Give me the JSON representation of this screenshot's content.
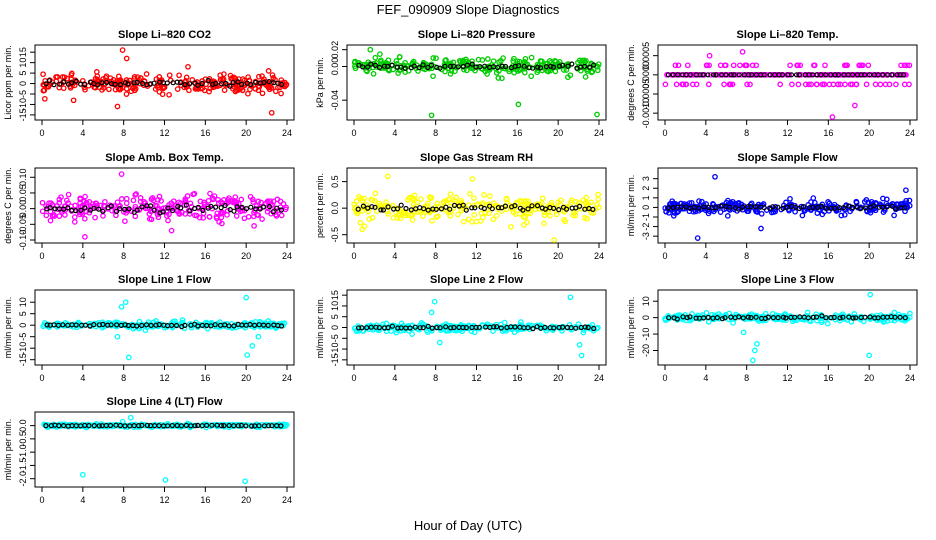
{
  "figure": {
    "title": "FEF_090909  Slope Diagnostics",
    "xlabel": "Hour of Day (UTC)"
  },
  "chart_data": [
    {
      "type": "scatter",
      "title": "Slope Li–820 CO2",
      "ylabel": "Licor ppm per min.",
      "color": "#ff0000",
      "xlim": [
        0,
        24
      ],
      "ylim": [
        -16,
        17
      ],
      "yticks": [
        -15,
        -10,
        -5,
        0,
        5,
        10,
        15
      ],
      "ytick_labels": [
        "-15",
        "-10",
        "-5",
        "0",
        "5",
        "10",
        "15"
      ],
      "xticks": [
        0,
        4,
        8,
        12,
        16,
        20,
        24
      ],
      "series": [
        {
          "mean": 0,
          "spread": 3.5,
          "outliers": [
            [
              7.9,
              16
            ],
            [
              8.3,
              12
            ],
            [
              3.1,
              -8
            ],
            [
              7.4,
              -11
            ],
            [
              22.5,
              -14
            ],
            [
              14.3,
              8
            ]
          ]
        }
      ]
    },
    {
      "type": "scatter",
      "title": "Slope Li–820 Pressure",
      "ylabel": "kPa per min.",
      "color": "#00cc00",
      "xlim": [
        0,
        24
      ],
      "ylim": [
        -0.06,
        0.022
      ],
      "yticks": [
        -0.04,
        0,
        0.02
      ],
      "ytick_labels": [
        "-0.04",
        "0.00",
        "0.02"
      ],
      "xticks": [
        0,
        4,
        8,
        12,
        16,
        20,
        24
      ],
      "series": [
        {
          "mean": 0,
          "spread": 0.008,
          "outliers": [
            [
              1.6,
              0.02
            ],
            [
              7.6,
              -0.058
            ],
            [
              23.8,
              -0.057
            ],
            [
              16.1,
              -0.045
            ]
          ]
        }
      ]
    },
    {
      "type": "scatter",
      "title": "Slope Li–820 Temp.",
      "ylabel": "degrees C per min.",
      "color": "#ff00ff",
      "xlim": [
        0,
        24
      ],
      "ylim": [
        -0.0011,
        0.0007
      ],
      "yticks": [
        -0.001,
        -0.0005,
        0,
        0.0005
      ],
      "ytick_labels": [
        "-0.0010",
        "-0.0005",
        "0.0000",
        "0.0005"
      ],
      "xticks": [
        0,
        4,
        8,
        12,
        16,
        20,
        24
      ],
      "series": [
        {
          "mean": 0,
          "spread": 0.0002,
          "quantum": 0.00025,
          "outliers": [
            [
              16.4,
              -0.0011
            ],
            [
              7.6,
              0.0006
            ],
            [
              18.6,
              -0.0008
            ]
          ]
        }
      ]
    },
    {
      "type": "scatter",
      "title": "Slope Amb. Box Temp.",
      "ylabel": "degrees C per min.",
      "color": "#ff00ff",
      "xlim": [
        0,
        24
      ],
      "ylim": [
        -0.1,
        0.12
      ],
      "yticks": [
        -0.1,
        -0.05,
        0,
        0.05,
        0.1
      ],
      "ytick_labels": [
        "-0.10",
        "-0.05",
        "0.00",
        "0.05",
        "0.10"
      ],
      "xticks": [
        0,
        4,
        8,
        12,
        16,
        20,
        24
      ],
      "series": [
        {
          "mean": 0,
          "spread": 0.035,
          "outliers": [
            [
              7.8,
              0.11
            ],
            [
              4.2,
              -0.09
            ],
            [
              12.7,
              -0.07
            ]
          ]
        }
      ]
    },
    {
      "type": "scatter",
      "title": "Slope Gas Stream RH",
      "ylabel": "percent per min.",
      "color": "#ffff00",
      "xlim": [
        0,
        24
      ],
      "ylim": [
        -0.6,
        0.7
      ],
      "yticks": [
        -0.5,
        0,
        0.5
      ],
      "ytick_labels": [
        "-0.5",
        "0.0",
        "0.5"
      ],
      "xticks": [
        0,
        4,
        8,
        12,
        16,
        20,
        24
      ],
      "series": [
        {
          "mean": 0,
          "spread": 0.2,
          "outliers": [
            [
              19.6,
              -0.6
            ],
            [
              11.6,
              0.55
            ],
            [
              3.3,
              0.6
            ]
          ]
        }
      ]
    },
    {
      "type": "scatter",
      "title": "Slope Sample Flow",
      "ylabel": "ml/min per min.",
      "color": "#0000ff",
      "xlim": [
        0,
        24
      ],
      "ylim": [
        -3.4,
        3.8
      ],
      "yticks": [
        -3,
        -2,
        -1,
        0,
        1,
        2,
        3
      ],
      "ytick_labels": [
        "-3",
        "-2",
        "-1",
        "0",
        "1",
        "2",
        "3"
      ],
      "xticks": [
        0,
        4,
        8,
        12,
        16,
        20,
        24
      ],
      "series": [
        {
          "mean": 0,
          "spread": 0.6,
          "outliers": [
            [
              4.9,
              3.2
            ],
            [
              3.2,
              -3.2
            ],
            [
              23.6,
              1.8
            ],
            [
              9.4,
              -2.2
            ]
          ]
        }
      ]
    },
    {
      "type": "scatter",
      "title": "Slope Line 1 Flow",
      "ylabel": "ml/min per min.",
      "color": "#00ffff",
      "xlim": [
        0,
        24
      ],
      "ylim": [
        -16,
        14
      ],
      "yticks": [
        -15,
        -10,
        -5,
        0,
        5,
        10
      ],
      "ytick_labels": [
        "-15",
        "-10",
        "-5",
        "0",
        "5",
        "10"
      ],
      "xticks": [
        0,
        4,
        8,
        12,
        16,
        20,
        24
      ],
      "series": [
        {
          "mean": 0,
          "spread": 1.2,
          "outliers": [
            [
              8.5,
              -14
            ],
            [
              7.8,
              8
            ],
            [
              8.2,
              10
            ],
            [
              20,
              12
            ],
            [
              20.1,
              -13
            ],
            [
              20.6,
              -9
            ],
            [
              21.2,
              -5
            ],
            [
              7.4,
              -5
            ]
          ]
        }
      ]
    },
    {
      "type": "scatter",
      "title": "Slope Line 2 Flow",
      "ylabel": "ml/min per min.",
      "color": "#00ffff",
      "xlim": [
        0,
        24
      ],
      "ylim": [
        -16,
        16
      ],
      "yticks": [
        -15,
        -10,
        -5,
        0,
        5,
        10,
        15
      ],
      "ytick_labels": [
        "-15",
        "-10",
        "-5",
        "0",
        "5",
        "10",
        "15"
      ],
      "xticks": [
        0,
        4,
        8,
        12,
        16,
        20,
        24
      ],
      "series": [
        {
          "mean": 0,
          "spread": 1.5,
          "outliers": [
            [
              7.9,
              12
            ],
            [
              21.2,
              14
            ],
            [
              22.3,
              -13
            ],
            [
              22.1,
              -8
            ],
            [
              7.6,
              7
            ],
            [
              8.4,
              -7
            ]
          ]
        }
      ]
    },
    {
      "type": "scatter",
      "title": "Slope Line 3 Flow",
      "ylabel": "ml/min per min.",
      "color": "#00ffff",
      "xlim": [
        0,
        24
      ],
      "ylim": [
        -27,
        15
      ],
      "yticks": [
        -20,
        -10,
        0,
        10
      ],
      "ytick_labels": [
        "-20",
        "-10",
        "0",
        "10"
      ],
      "xticks": [
        0,
        4,
        8,
        12,
        16,
        20,
        24
      ],
      "series": [
        {
          "mean": 0,
          "spread": 2,
          "outliers": [
            [
              8.6,
              -26
            ],
            [
              8.8,
              -20
            ],
            [
              9,
              -16
            ],
            [
              20,
              -23
            ],
            [
              20.1,
              14
            ],
            [
              7.7,
              -9
            ]
          ]
        }
      ]
    },
    {
      "type": "scatter",
      "title": "Slope Line 4 (LT) Flow",
      "ylabel": "ml/min per min.",
      "color": "#00ffff",
      "xlim": [
        0,
        24
      ],
      "ylim": [
        -2.2,
        0.4
      ],
      "yticks": [
        -2,
        -1.5,
        -1,
        -0.5,
        0
      ],
      "ytick_labels": [
        "-2.0",
        "-1.5",
        "-1.0",
        "-0.5",
        "0.0"
      ],
      "xticks": [
        0,
        4,
        8,
        12,
        16,
        20,
        24
      ],
      "series": [
        {
          "mean": 0,
          "spread": 0.05,
          "outliers": [
            [
              4,
              -1.85
            ],
            [
              12.1,
              -2.05
            ],
            [
              19.9,
              -2.1
            ],
            [
              8.7,
              0.3
            ],
            [
              7.9,
              0.15
            ]
          ]
        }
      ]
    }
  ]
}
